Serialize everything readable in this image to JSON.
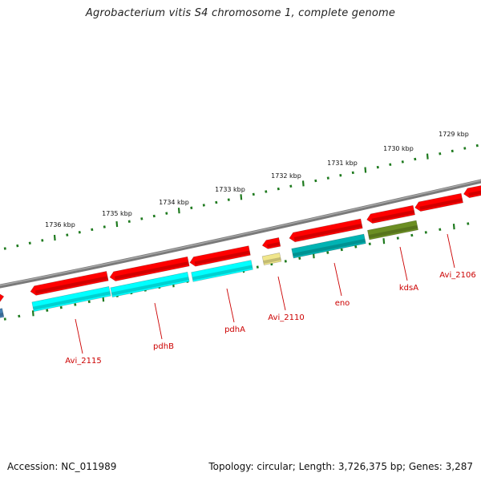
{
  "title": "Agrobacterium vitis S4 chromosome 1, complete genome",
  "footer": {
    "accession": "Accession: NC_011989",
    "summary": "Topology: circular; Length: 3,726,375 bp; Genes: 3,287"
  },
  "colors": {
    "backbone": "#808080",
    "tick": "#1e7a1e",
    "label": "#cc0000",
    "axis_label": "#111111",
    "outer_gene": "#ff0000",
    "inner_gene_cyan": "#00ffff",
    "inner_gene_teal": "#00b3b3",
    "inner_gene_olive": "#6b8e23",
    "inner_gene_yellow": "#f0e68c",
    "inner_gene_steel": "#4682b4"
  },
  "kbp_ticks": [
    {
      "label": "1736 kbp",
      "kbp": 1736
    },
    {
      "label": "1735 kbp",
      "kbp": 1735
    },
    {
      "label": "1734 kbp",
      "kbp": 1734
    },
    {
      "label": "1733 kbp",
      "kbp": 1733
    },
    {
      "label": "1732 kbp",
      "kbp": 1732
    },
    {
      "label": "1731 kbp",
      "kbp": 1731
    },
    {
      "label": "1730 kbp",
      "kbp": 1730
    },
    {
      "label": "1729 kbp",
      "kbp": 1729
    }
  ],
  "gene_labels": [
    {
      "name": "Avi_2115"
    },
    {
      "name": "pdhB"
    },
    {
      "name": "pdhA"
    },
    {
      "name": "Avi_2110"
    },
    {
      "name": "eno"
    },
    {
      "name": "kdsA"
    },
    {
      "name": "Avi_2106"
    }
  ]
}
